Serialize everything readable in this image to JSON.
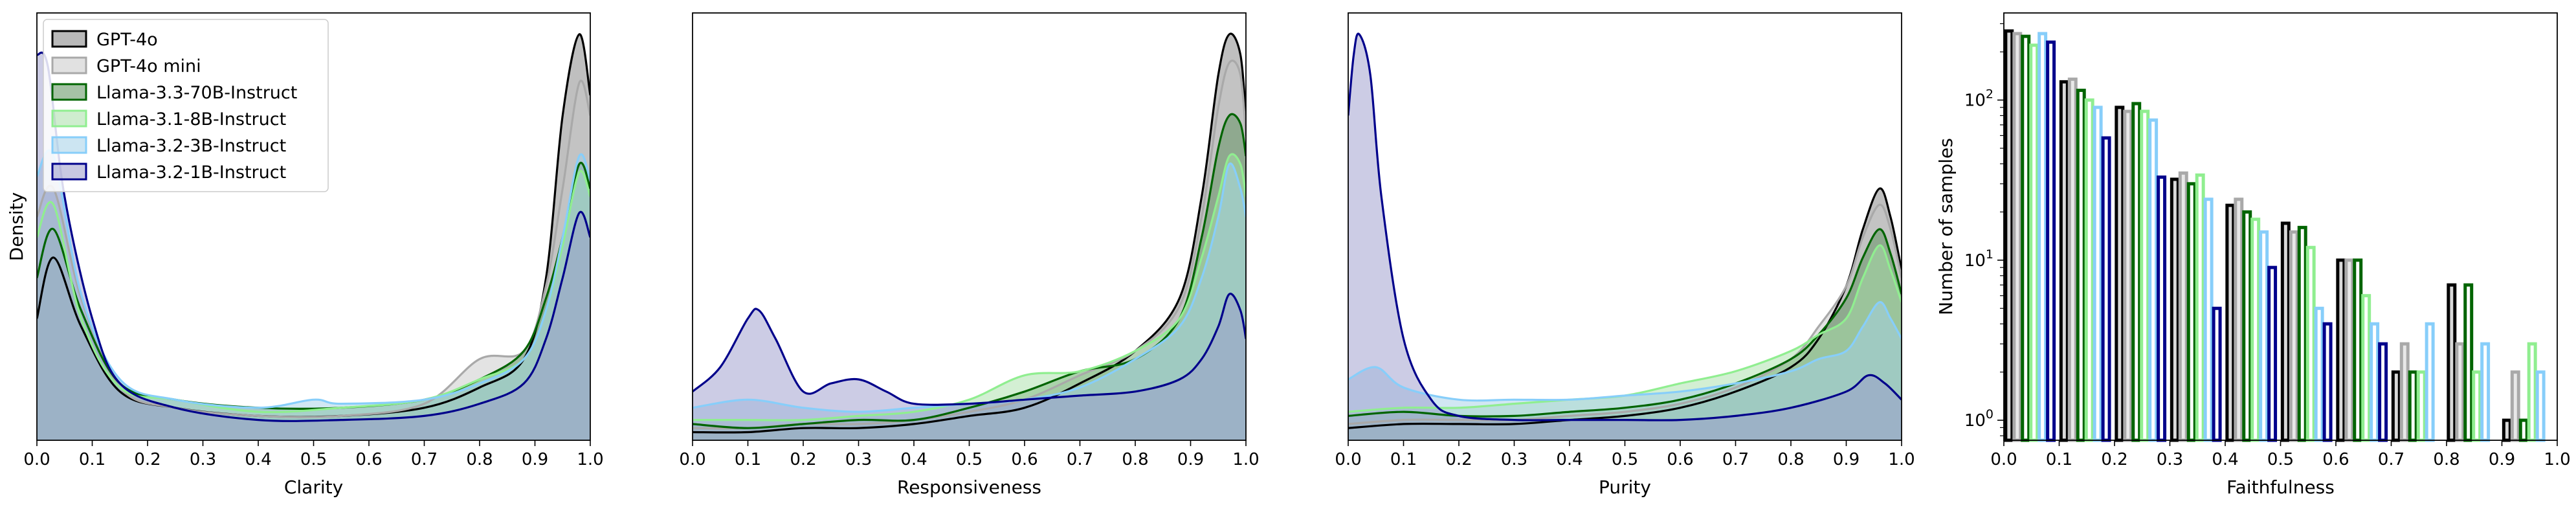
{
  "series_names": [
    "GPT-4o",
    "GPT-4o mini",
    "Llama-3.3-70B-Instruct",
    "Llama-3.1-8B-Instruct",
    "Llama-3.2-3B-Instruct",
    "Llama-3.2-1B-Instruct"
  ],
  "series_colors": {
    "edge": [
      "#000000",
      "#a9a9a9",
      "#006400",
      "#90ee90",
      "#87cefa",
      "#00008b"
    ],
    "fill": [
      "#808080",
      "#c8c8c8",
      "#5b8f5b",
      "#a8dfa8",
      "#a3cfe8",
      "#9a9acb"
    ]
  },
  "chart_data": [
    {
      "type": "area",
      "subtype": "kde-density",
      "xlabel": "Clarity",
      "ylabel": "Density",
      "xlim": [
        0.0,
        1.0
      ],
      "xticks": [
        "0.0",
        "0.1",
        "0.2",
        "0.3",
        "0.4",
        "0.5",
        "0.6",
        "0.7",
        "0.8",
        "0.9",
        "1.0"
      ],
      "y_ticks_shown": false,
      "legend": "upper-left",
      "series": [
        {
          "name": "GPT-4o",
          "x": [
            0.0,
            0.03,
            0.08,
            0.15,
            0.25,
            0.4,
            0.55,
            0.7,
            0.8,
            0.88,
            0.92,
            0.95,
            0.98,
            1.0
          ],
          "y": [
            0.3,
            0.45,
            0.28,
            0.12,
            0.08,
            0.06,
            0.06,
            0.08,
            0.13,
            0.2,
            0.4,
            0.8,
            1.0,
            0.85
          ]
        },
        {
          "name": "GPT-4o mini",
          "x": [
            0.0,
            0.03,
            0.08,
            0.15,
            0.25,
            0.4,
            0.55,
            0.7,
            0.8,
            0.88,
            0.92,
            0.95,
            0.98,
            1.0
          ],
          "y": [
            0.55,
            0.62,
            0.35,
            0.13,
            0.08,
            0.06,
            0.06,
            0.09,
            0.2,
            0.22,
            0.38,
            0.62,
            0.88,
            0.8
          ]
        },
        {
          "name": "Llama-3.3-70B-Instruct",
          "x": [
            0.0,
            0.03,
            0.08,
            0.15,
            0.25,
            0.4,
            0.55,
            0.7,
            0.8,
            0.88,
            0.92,
            0.95,
            0.98,
            1.0
          ],
          "y": [
            0.4,
            0.52,
            0.32,
            0.14,
            0.1,
            0.08,
            0.08,
            0.1,
            0.15,
            0.22,
            0.35,
            0.5,
            0.68,
            0.62
          ]
        },
        {
          "name": "Llama-3.1-8B-Instruct",
          "x": [
            0.0,
            0.03,
            0.08,
            0.15,
            0.25,
            0.4,
            0.55,
            0.7,
            0.8,
            0.88,
            0.92,
            0.95,
            0.98,
            1.0
          ],
          "y": [
            0.5,
            0.58,
            0.3,
            0.13,
            0.1,
            0.07,
            0.08,
            0.1,
            0.15,
            0.2,
            0.32,
            0.48,
            0.66,
            0.6
          ]
        },
        {
          "name": "Llama-3.2-3B-Instruct",
          "x": [
            0.0,
            0.03,
            0.08,
            0.15,
            0.25,
            0.4,
            0.5,
            0.55,
            0.7,
            0.8,
            0.88,
            0.92,
            0.95,
            0.98,
            1.0
          ],
          "y": [
            0.65,
            0.7,
            0.36,
            0.15,
            0.1,
            0.08,
            0.1,
            0.09,
            0.1,
            0.14,
            0.2,
            0.32,
            0.5,
            0.7,
            0.64
          ]
        },
        {
          "name": "Llama-3.2-1B-Instruct",
          "x": [
            0.0,
            0.02,
            0.05,
            0.1,
            0.15,
            0.25,
            0.4,
            0.55,
            0.7,
            0.8,
            0.88,
            0.92,
            0.95,
            0.98,
            1.0
          ],
          "y": [
            0.95,
            0.92,
            0.6,
            0.3,
            0.14,
            0.08,
            0.05,
            0.05,
            0.06,
            0.09,
            0.14,
            0.25,
            0.4,
            0.56,
            0.5
          ]
        }
      ]
    },
    {
      "type": "area",
      "subtype": "kde-density",
      "xlabel": "Responsiveness",
      "ylabel": "",
      "xlim": [
        0.0,
        1.0
      ],
      "xticks": [
        "0.0",
        "0.1",
        "0.2",
        "0.3",
        "0.4",
        "0.5",
        "0.6",
        "0.7",
        "0.8",
        "0.9",
        "1.0"
      ],
      "y_ticks_shown": false,
      "series": [
        {
          "name": "GPT-4o",
          "x": [
            0.0,
            0.1,
            0.2,
            0.3,
            0.4,
            0.5,
            0.6,
            0.7,
            0.8,
            0.88,
            0.92,
            0.95,
            0.97,
            0.99,
            1.0
          ],
          "y": [
            0.02,
            0.02,
            0.03,
            0.03,
            0.04,
            0.06,
            0.08,
            0.14,
            0.22,
            0.35,
            0.6,
            0.9,
            1.0,
            0.95,
            0.8
          ]
        },
        {
          "name": "GPT-4o mini",
          "x": [
            0.0,
            0.1,
            0.2,
            0.3,
            0.4,
            0.5,
            0.6,
            0.7,
            0.8,
            0.88,
            0.92,
            0.95,
            0.97,
            0.99,
            1.0
          ],
          "y": [
            0.03,
            0.03,
            0.04,
            0.04,
            0.05,
            0.07,
            0.1,
            0.16,
            0.22,
            0.33,
            0.55,
            0.82,
            0.93,
            0.9,
            0.75
          ]
        },
        {
          "name": "Llama-3.3-70B-Instruct",
          "x": [
            0.0,
            0.1,
            0.2,
            0.3,
            0.4,
            0.5,
            0.6,
            0.7,
            0.8,
            0.88,
            0.92,
            0.95,
            0.97,
            0.99,
            1.0
          ],
          "y": [
            0.04,
            0.03,
            0.04,
            0.05,
            0.05,
            0.08,
            0.12,
            0.17,
            0.2,
            0.3,
            0.5,
            0.72,
            0.8,
            0.78,
            0.7
          ]
        },
        {
          "name": "Llama-3.1-8B-Instruct",
          "x": [
            0.0,
            0.1,
            0.2,
            0.3,
            0.4,
            0.5,
            0.6,
            0.7,
            0.8,
            0.88,
            0.92,
            0.95,
            0.97,
            0.99,
            1.0
          ],
          "y": [
            0.05,
            0.05,
            0.05,
            0.06,
            0.07,
            0.1,
            0.16,
            0.17,
            0.22,
            0.3,
            0.45,
            0.6,
            0.7,
            0.68,
            0.6
          ]
        },
        {
          "name": "Llama-3.2-3B-Instruct",
          "x": [
            0.0,
            0.1,
            0.2,
            0.3,
            0.4,
            0.5,
            0.6,
            0.7,
            0.8,
            0.88,
            0.92,
            0.95,
            0.97,
            0.99,
            1.0
          ],
          "y": [
            0.08,
            0.1,
            0.08,
            0.07,
            0.08,
            0.09,
            0.1,
            0.13,
            0.2,
            0.28,
            0.4,
            0.55,
            0.68,
            0.62,
            0.55
          ]
        },
        {
          "name": "Llama-3.2-1B-Instruct",
          "x": [
            0.0,
            0.05,
            0.1,
            0.12,
            0.15,
            0.2,
            0.25,
            0.3,
            0.35,
            0.4,
            0.5,
            0.6,
            0.7,
            0.8,
            0.88,
            0.92,
            0.95,
            0.97,
            0.99,
            1.0
          ],
          "y": [
            0.12,
            0.18,
            0.3,
            0.32,
            0.25,
            0.12,
            0.14,
            0.15,
            0.12,
            0.09,
            0.09,
            0.1,
            0.11,
            0.12,
            0.15,
            0.2,
            0.28,
            0.36,
            0.32,
            0.25
          ]
        }
      ]
    },
    {
      "type": "area",
      "subtype": "kde-density",
      "xlabel": "Purity",
      "ylabel": "",
      "xlim": [
        0.0,
        1.0
      ],
      "xticks": [
        "0.0",
        "0.1",
        "0.2",
        "0.3",
        "0.4",
        "0.5",
        "0.6",
        "0.7",
        "0.8",
        "0.9",
        "1.0"
      ],
      "y_ticks_shown": false,
      "series": [
        {
          "name": "GPT-4o",
          "x": [
            0.0,
            0.1,
            0.2,
            0.3,
            0.4,
            0.5,
            0.6,
            0.7,
            0.8,
            0.85,
            0.9,
            0.93,
            0.96,
            0.98,
            1.0
          ],
          "y": [
            0.03,
            0.04,
            0.04,
            0.04,
            0.05,
            0.06,
            0.08,
            0.12,
            0.18,
            0.25,
            0.38,
            0.52,
            0.62,
            0.55,
            0.42
          ]
        },
        {
          "name": "GPT-4o mini",
          "x": [
            0.0,
            0.1,
            0.2,
            0.3,
            0.4,
            0.5,
            0.6,
            0.7,
            0.8,
            0.85,
            0.9,
            0.93,
            0.96,
            0.98,
            1.0
          ],
          "y": [
            0.04,
            0.05,
            0.05,
            0.05,
            0.06,
            0.07,
            0.09,
            0.13,
            0.2,
            0.28,
            0.38,
            0.5,
            0.58,
            0.52,
            0.4
          ]
        },
        {
          "name": "Llama-3.3-70B-Instruct",
          "x": [
            0.0,
            0.1,
            0.2,
            0.3,
            0.4,
            0.5,
            0.6,
            0.7,
            0.8,
            0.85,
            0.9,
            0.93,
            0.96,
            0.98,
            1.0
          ],
          "y": [
            0.06,
            0.07,
            0.06,
            0.06,
            0.07,
            0.08,
            0.1,
            0.14,
            0.2,
            0.26,
            0.35,
            0.45,
            0.52,
            0.46,
            0.36
          ]
        },
        {
          "name": "Llama-3.1-8B-Instruct",
          "x": [
            0.0,
            0.1,
            0.2,
            0.3,
            0.4,
            0.5,
            0.6,
            0.7,
            0.8,
            0.85,
            0.9,
            0.93,
            0.96,
            0.98,
            1.0
          ],
          "y": [
            0.07,
            0.08,
            0.08,
            0.09,
            0.1,
            0.11,
            0.14,
            0.17,
            0.22,
            0.26,
            0.3,
            0.4,
            0.48,
            0.42,
            0.34
          ]
        },
        {
          "name": "Llama-3.2-3B-Instruct",
          "x": [
            0.0,
            0.05,
            0.1,
            0.2,
            0.3,
            0.4,
            0.5,
            0.6,
            0.7,
            0.8,
            0.85,
            0.9,
            0.93,
            0.96,
            0.98,
            1.0
          ],
          "y": [
            0.15,
            0.18,
            0.13,
            0.1,
            0.1,
            0.1,
            0.11,
            0.12,
            0.14,
            0.17,
            0.2,
            0.22,
            0.28,
            0.34,
            0.3,
            0.25
          ]
        },
        {
          "name": "Llama-3.2-1B-Instruct",
          "x": [
            0.0,
            0.01,
            0.02,
            0.04,
            0.06,
            0.1,
            0.15,
            0.2,
            0.3,
            0.4,
            0.5,
            0.6,
            0.7,
            0.8,
            0.9,
            0.94,
            0.97,
            1.0
          ],
          "y": [
            0.8,
            0.95,
            1.0,
            0.9,
            0.6,
            0.25,
            0.1,
            0.06,
            0.05,
            0.05,
            0.05,
            0.05,
            0.06,
            0.08,
            0.12,
            0.16,
            0.14,
            0.1
          ]
        }
      ]
    },
    {
      "type": "bar",
      "subtype": "grouped-histogram",
      "xlabel": "Faithfulness",
      "ylabel": "Number of samples",
      "xlim": [
        0.0,
        1.0
      ],
      "xticks": [
        "0.0",
        "0.1",
        "0.2",
        "0.3",
        "0.4",
        "0.5",
        "0.6",
        "0.7",
        "0.8",
        "0.9",
        "1.0"
      ],
      "yscale": "log",
      "ylim": [
        0.75,
        350
      ],
      "yticks": [
        "10^0",
        "10^1",
        "10^2"
      ],
      "bin_centers": [
        0.05,
        0.15,
        0.25,
        0.35,
        0.45,
        0.55,
        0.65,
        0.75,
        0.85,
        0.95
      ],
      "series": [
        {
          "name": "GPT-4o",
          "values": [
            270,
            130,
            90,
            32,
            22,
            17,
            10,
            2,
            7,
            1
          ]
        },
        {
          "name": "GPT-4o mini",
          "values": [
            260,
            135,
            85,
            35,
            24,
            15,
            10,
            3,
            3,
            2
          ]
        },
        {
          "name": "Llama-3.3-70B-Instruct",
          "values": [
            250,
            115,
            95,
            30,
            20,
            16,
            10,
            2,
            7,
            1
          ]
        },
        {
          "name": "Llama-3.1-8B-Instruct",
          "values": [
            220,
            100,
            85,
            34,
            18,
            12,
            6,
            2,
            2,
            3
          ]
        },
        {
          "name": "Llama-3.2-3B-Instruct",
          "values": [
            260,
            90,
            75,
            24,
            15,
            5,
            4,
            4,
            3,
            2
          ]
        },
        {
          "name": "Llama-3.2-1B-Instruct",
          "values": [
            230,
            58,
            33,
            5,
            9,
            4,
            3,
            0,
            0,
            0
          ]
        }
      ]
    }
  ]
}
